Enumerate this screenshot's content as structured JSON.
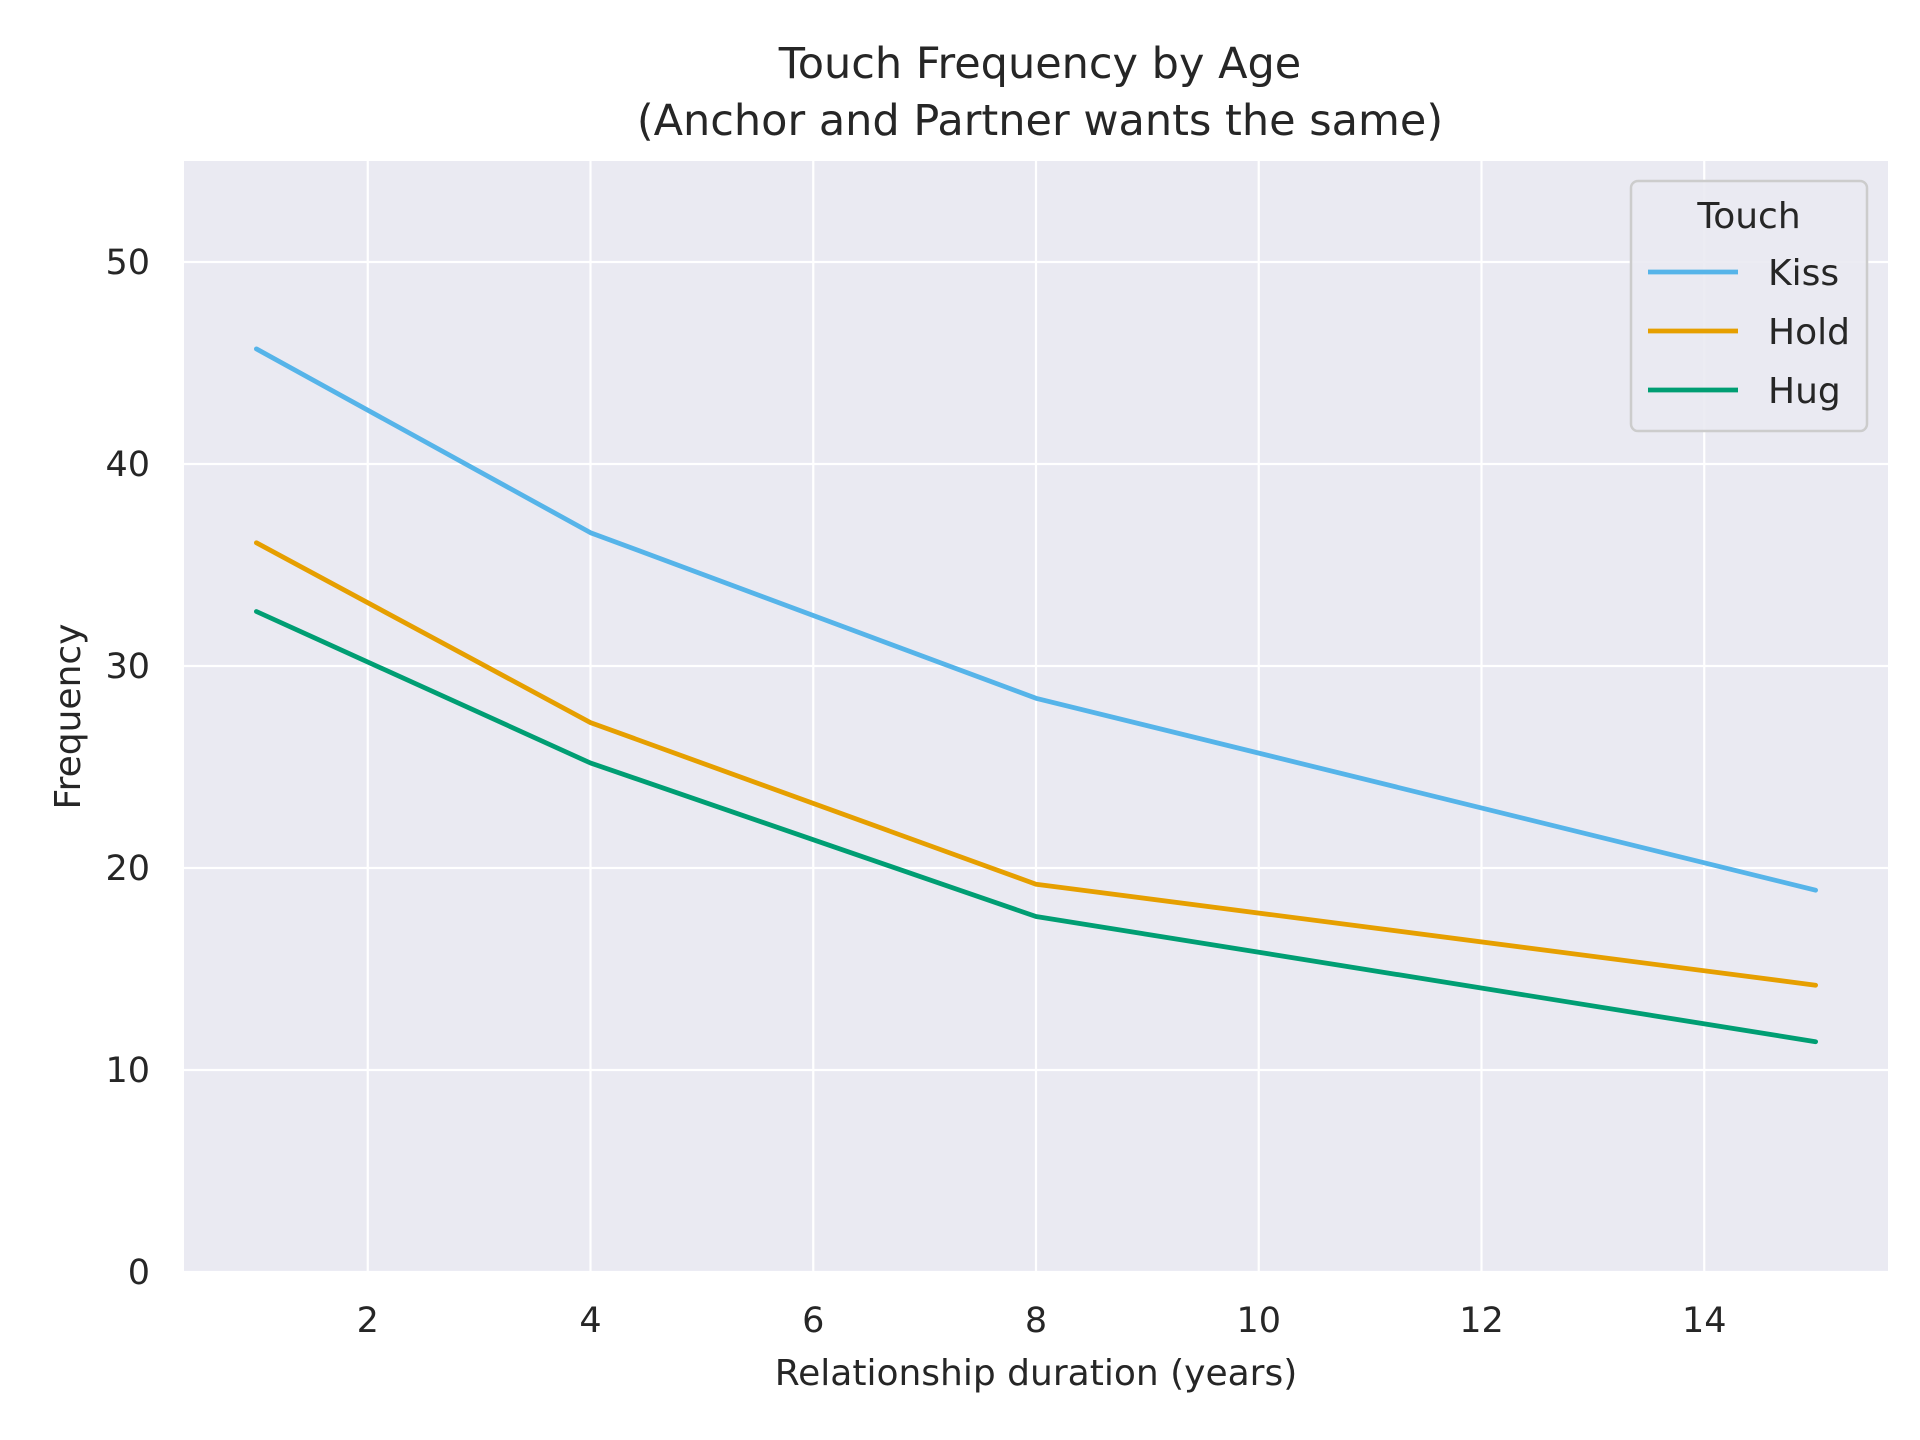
{
  "chart_data": {
    "type": "line",
    "title": "Touch Frequency by Age",
    "subtitle": "(Anchor and Partner wants the same)",
    "xlabel": "Relationship duration (years)",
    "ylabel": "Frequency",
    "xlim": [
      0.35,
      15.65
    ],
    "ylim": [
      0,
      55
    ],
    "xticks": [
      2,
      4,
      6,
      8,
      10,
      12,
      14
    ],
    "yticks": [
      0,
      10,
      20,
      30,
      40,
      50
    ],
    "grid": true,
    "background": "#eaeaf2",
    "grid_color": "#ffffff",
    "legend": {
      "title": "Touch",
      "position": "top-right"
    },
    "x": [
      1,
      4,
      8,
      15
    ],
    "series": [
      {
        "name": "Kiss",
        "color": "#56b4e9",
        "values": [
          45.7,
          36.6,
          28.4,
          18.9
        ]
      },
      {
        "name": "Hold",
        "color": "#e69f00",
        "values": [
          36.1,
          27.2,
          19.2,
          14.2
        ]
      },
      {
        "name": "Hug",
        "color": "#009e73",
        "values": [
          32.7,
          25.2,
          17.6,
          11.4
        ]
      }
    ]
  }
}
